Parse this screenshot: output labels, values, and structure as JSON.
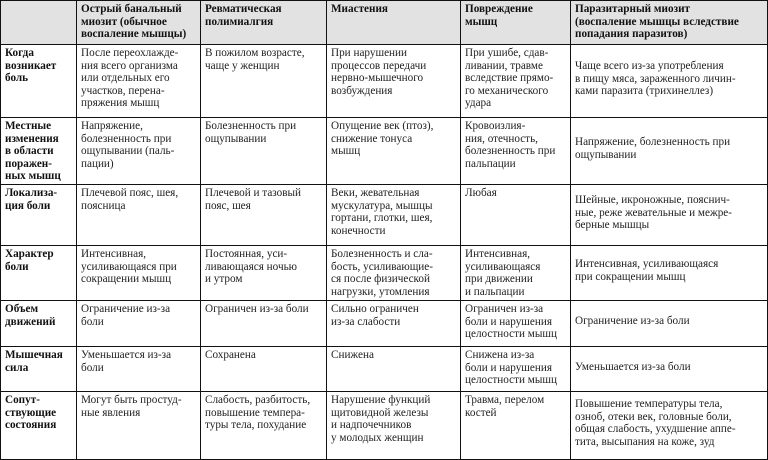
{
  "table": {
    "columns": [
      "",
      "Острый банальный\nмиозит (обычное\nвоспаление мышцы)",
      "Ревматическая\nполимиалгия",
      "Миастения",
      "Повреждение\nмышц",
      "Паразитарный миозит\n(воспаление мышцы вследствие\nпопадания паразитов)"
    ],
    "rows": [
      {
        "label": "Когда\nвозникает\nболь",
        "cells": [
          "После переохлажде-\nния всего организма\nили отдельных его\nучастков, перена-\nпряжения мышц",
          "В пожилом возрасте,\nчаще у женщин",
          "При нарушении\nпроцессов передачи\nнервно-мышечного\nвозбуждения",
          "При ушибе, сдав-\nливании, травме\nвследствие прямо-\nго механического\nудара",
          "Чаще всего из-за употребления\nв пищу мяса, зараженного личин-\nками паразита (трихинеллез)"
        ]
      },
      {
        "label": "Местные\nизменения\nв области\nпоражен-\nных мышц",
        "cells": [
          "Напряжение,\nболезненность при\nощупывании (паль-\nпации)",
          "Болезненность при\nощупывании",
          "Опущение век (птоз),\nснижение тонуса\nмышц",
          "Кровоизлия-\nния, отечность,\nболезненность при\nпальпации",
          "Напряжение, болезненность при\nощупывании"
        ]
      },
      {
        "label": "Локализа-\nция боли",
        "cells": [
          "Плечевой пояс, шея,\nпоясница",
          "Плечевой и тазовый\nпояс, шея",
          "Веки, жевательная\nмускулатура, мышцы\nгортани, глотки, шея,\nконечности",
          "Любая",
          "Шейные, икроножные, пояснич-\nные, реже жевательные и межре-\nберные мышцы"
        ]
      },
      {
        "label": "Характер\nболи",
        "cells": [
          "Интенсивная,\nусиливающаяся при\nсокращении мышц",
          "Постоянная, уси-\nливающаяся ночью\nи утром",
          "Болезненность и сла-\nбость, усиливающие-\nся после физической\nнагрузки, утомления",
          "Интенсивная,\nусиливающаяся\nпри движении\nи пальпации",
          "Интенсивная, усиливающаяся\nпри сокращении мышц"
        ]
      },
      {
        "label": "Объем\nдвижений",
        "cells": [
          "Ограничение из-за\nболи",
          "Ограничен из-за боли",
          "Сильно ограничен\nиз-за слабости",
          "Ограничен из-за\nболи и нарушения\nцелостности мышц",
          "Ограничение из-за боли"
        ]
      },
      {
        "label": "Мышечная\nсила",
        "cells": [
          "Уменьшается из-за\nболи",
          "Сохранена",
          "Снижена",
          "Снижена из-за\nболи и нарушения\nцелостности мышц",
          "Уменьшается из-за боли"
        ]
      },
      {
        "label": "Сопут-\nствующие\nсостояния",
        "cells": [
          "Могут быть простуд-\nные явления",
          "Слабость, разбитость,\nповышение темпера-\nтуры тела, похудание",
          "Нарушение функций\nщитовидной железы\nи надпочечников\nу молодых женщин",
          "Травма, перелом\nкостей",
          "Повышение температуры тела,\nозноб, отеки век, головные боли,\nобщая слабость, ухудшение аппе-\nтита, высыпания на коже, зуд"
        ]
      }
    ]
  }
}
